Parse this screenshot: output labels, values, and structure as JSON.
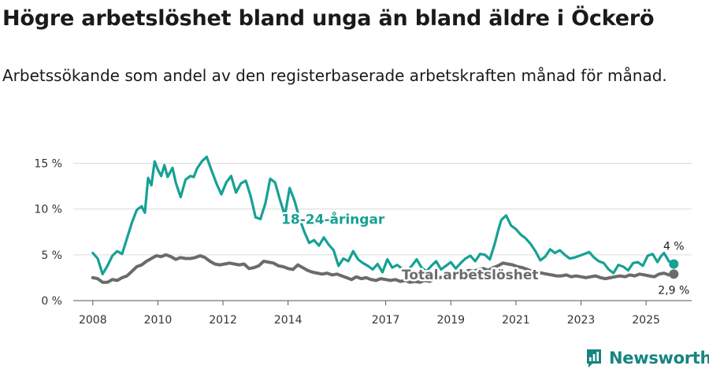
{
  "title": "Högre arbetslöshet bland unga än bland äldre i Öckerö",
  "subtitle": "Arbetssökande som andel av den registerbaserade arbetskraften månad för månad.",
  "brand": {
    "name": "Newsworthy",
    "icon": "newsworthy-logo-icon",
    "color": "#17857f"
  },
  "chart_data": {
    "type": "line",
    "title": "Högre arbetslöshet bland unga än bland äldre i Öckerö",
    "xlabel": "",
    "ylabel": "",
    "ylim": [
      0,
      16.5
    ],
    "xlim": [
      2007.4,
      2026.4
    ],
    "grid": true,
    "y_ticks": [
      {
        "value": 0,
        "label": "0 %"
      },
      {
        "value": 5,
        "label": "5 %"
      },
      {
        "value": 10,
        "label": "10 %"
      },
      {
        "value": 15,
        "label": "15 %"
      }
    ],
    "x_ticks": [
      {
        "value": 2008,
        "label": "2008"
      },
      {
        "value": 2010,
        "label": "2010"
      },
      {
        "value": 2012,
        "label": "2012"
      },
      {
        "value": 2014,
        "label": "2014"
      },
      {
        "value": 2017,
        "label": "2017"
      },
      {
        "value": 2019,
        "label": "2019"
      },
      {
        "value": 2021,
        "label": "2021"
      },
      {
        "value": 2023,
        "label": "2023"
      },
      {
        "value": 2025,
        "label": "2025"
      }
    ],
    "series": [
      {
        "name": "18-24-åringar",
        "color": "#15a195",
        "label_text": "18-24-åringar",
        "end_label": "4 %",
        "x": [
          2008.0,
          2008.15,
          2008.3,
          2008.45,
          2008.6,
          2008.75,
          2008.9,
          2009.05,
          2009.2,
          2009.35,
          2009.5,
          2009.6,
          2009.7,
          2009.8,
          2009.9,
          2010.0,
          2010.1,
          2010.2,
          2010.3,
          2010.45,
          2010.55,
          2010.7,
          2010.85,
          2011.0,
          2011.1,
          2011.2,
          2011.35,
          2011.5,
          2011.65,
          2011.8,
          2011.95,
          2012.1,
          2012.25,
          2012.4,
          2012.55,
          2012.7,
          2012.85,
          2013.0,
          2013.15,
          2013.3,
          2013.45,
          2013.6,
          2013.75,
          2013.9,
          2014.05,
          2014.2,
          2014.35,
          2014.5,
          2014.65,
          2014.8,
          2014.95,
          2015.1,
          2015.25,
          2015.4,
          2015.55,
          2015.7,
          2015.85,
          2016.0,
          2016.15,
          2016.3,
          2016.45,
          2016.6,
          2016.75,
          2016.9,
          2017.05,
          2017.2,
          2017.35,
          2017.5,
          2017.65,
          2017.8,
          2017.95,
          2018.1,
          2018.25,
          2018.4,
          2018.55,
          2018.7,
          2018.85,
          2019.0,
          2019.15,
          2019.3,
          2019.45,
          2019.6,
          2019.75,
          2019.9,
          2020.05,
          2020.2,
          2020.35,
          2020.45,
          2020.55,
          2020.7,
          2020.85,
          2021.0,
          2021.15,
          2021.3,
          2021.45,
          2021.6,
          2021.75,
          2021.9,
          2022.05,
          2022.2,
          2022.35,
          2022.5,
          2022.65,
          2022.8,
          2022.95,
          2023.1,
          2023.25,
          2023.4,
          2023.55,
          2023.7,
          2023.85,
          2024.0,
          2024.15,
          2024.3,
          2024.45,
          2024.6,
          2024.75,
          2024.9,
          2025.05,
          2025.2,
          2025.35,
          2025.45,
          2025.55,
          2025.7,
          2025.85
        ],
        "values": [
          5.2,
          4.6,
          2.9,
          3.8,
          4.9,
          5.4,
          5.1,
          6.8,
          8.5,
          9.9,
          10.3,
          9.6,
          13.4,
          12.6,
          15.2,
          14.3,
          13.6,
          14.8,
          13.5,
          14.5,
          12.9,
          11.3,
          13.2,
          13.6,
          13.5,
          14.4,
          15.2,
          15.7,
          14.2,
          12.8,
          11.6,
          12.9,
          13.6,
          11.8,
          12.8,
          13.1,
          11.4,
          9.1,
          8.9,
          10.6,
          13.3,
          12.9,
          11.0,
          9.3,
          12.3,
          10.9,
          9.0,
          7.5,
          6.3,
          6.6,
          6.0,
          6.9,
          6.1,
          5.5,
          3.8,
          4.6,
          4.3,
          5.4,
          4.5,
          4.1,
          3.8,
          3.4,
          4.0,
          3.1,
          4.5,
          3.6,
          3.9,
          3.5,
          3.2,
          3.8,
          4.5,
          3.6,
          3.2,
          3.8,
          4.3,
          3.4,
          3.8,
          4.2,
          3.5,
          4.1,
          4.6,
          4.9,
          4.3,
          5.1,
          5.0,
          4.5,
          6.2,
          7.6,
          8.8,
          9.3,
          8.2,
          7.8,
          7.2,
          6.8,
          6.2,
          5.4,
          4.4,
          4.8,
          5.6,
          5.2,
          5.5,
          5.0,
          4.6,
          4.7,
          4.9,
          5.1,
          5.3,
          4.7,
          4.3,
          4.1,
          3.4,
          3.0,
          3.9,
          3.7,
          3.3,
          4.1,
          4.2,
          3.8,
          4.9,
          5.1,
          4.2,
          4.8,
          5.2,
          4.3,
          4.0
        ],
        "end_x": 2025.85,
        "end_value": 4.0
      },
      {
        "name": "Total arbetslöshet",
        "color": "#6b6b6b",
        "label_text": "Total arbetslöshet",
        "end_label": "2,9 %",
        "x": [
          2008.0,
          2008.15,
          2008.3,
          2008.45,
          2008.6,
          2008.75,
          2008.9,
          2009.05,
          2009.2,
          2009.35,
          2009.5,
          2009.65,
          2009.8,
          2009.95,
          2010.1,
          2010.25,
          2010.4,
          2010.55,
          2010.7,
          2010.85,
          2011.0,
          2011.15,
          2011.3,
          2011.45,
          2011.6,
          2011.75,
          2011.9,
          2012.05,
          2012.2,
          2012.35,
          2012.5,
          2012.65,
          2012.8,
          2012.95,
          2013.1,
          2013.25,
          2013.4,
          2013.55,
          2013.7,
          2013.85,
          2014.0,
          2014.15,
          2014.3,
          2014.45,
          2014.6,
          2014.75,
          2014.9,
          2015.05,
          2015.2,
          2015.35,
          2015.5,
          2015.65,
          2015.8,
          2015.95,
          2016.1,
          2016.25,
          2016.4,
          2016.55,
          2016.7,
          2016.85,
          2017.0,
          2017.15,
          2017.3,
          2017.45,
          2017.6,
          2017.75,
          2017.9,
          2018.05,
          2018.2,
          2018.35,
          2018.5,
          2018.65,
          2018.8,
          2018.95,
          2019.1,
          2019.25,
          2019.4,
          2019.55,
          2019.7,
          2019.85,
          2020.0,
          2020.15,
          2020.3,
          2020.45,
          2020.6,
          2020.75,
          2020.9,
          2021.05,
          2021.2,
          2021.35,
          2021.5,
          2021.65,
          2021.8,
          2021.95,
          2022.1,
          2022.25,
          2022.4,
          2022.55,
          2022.7,
          2022.85,
          2023.0,
          2023.15,
          2023.3,
          2023.45,
          2023.6,
          2023.75,
          2023.9,
          2024.05,
          2024.2,
          2024.35,
          2024.5,
          2024.65,
          2024.8,
          2024.95,
          2025.1,
          2025.25,
          2025.4,
          2025.55,
          2025.7,
          2025.85
        ],
        "values": [
          2.5,
          2.4,
          2.0,
          2.0,
          2.3,
          2.2,
          2.5,
          2.7,
          3.2,
          3.7,
          3.9,
          4.3,
          4.6,
          4.9,
          4.8,
          5.0,
          4.8,
          4.5,
          4.7,
          4.6,
          4.6,
          4.7,
          4.9,
          4.7,
          4.3,
          4.0,
          3.9,
          4.0,
          4.1,
          4.0,
          3.9,
          4.0,
          3.5,
          3.6,
          3.8,
          4.3,
          4.2,
          4.1,
          3.8,
          3.7,
          3.5,
          3.4,
          3.9,
          3.6,
          3.3,
          3.1,
          3.0,
          2.9,
          3.0,
          2.8,
          2.9,
          2.7,
          2.5,
          2.3,
          2.6,
          2.4,
          2.5,
          2.3,
          2.2,
          2.4,
          2.3,
          2.2,
          2.3,
          2.1,
          2.2,
          2.0,
          2.1,
          2.0,
          2.2,
          2.1,
          2.4,
          2.5,
          2.6,
          2.8,
          3.0,
          2.9,
          3.1,
          3.3,
          3.2,
          3.4,
          3.5,
          3.3,
          3.6,
          3.8,
          4.1,
          4.0,
          3.9,
          3.7,
          3.6,
          3.4,
          3.2,
          3.1,
          3.0,
          2.9,
          2.8,
          2.7,
          2.7,
          2.8,
          2.6,
          2.7,
          2.6,
          2.5,
          2.6,
          2.7,
          2.5,
          2.4,
          2.5,
          2.6,
          2.7,
          2.6,
          2.8,
          2.7,
          2.9,
          2.8,
          2.7,
          2.6,
          2.9,
          3.0,
          2.8,
          2.9
        ],
        "end_x": 2025.85,
        "end_value": 2.9
      }
    ]
  }
}
